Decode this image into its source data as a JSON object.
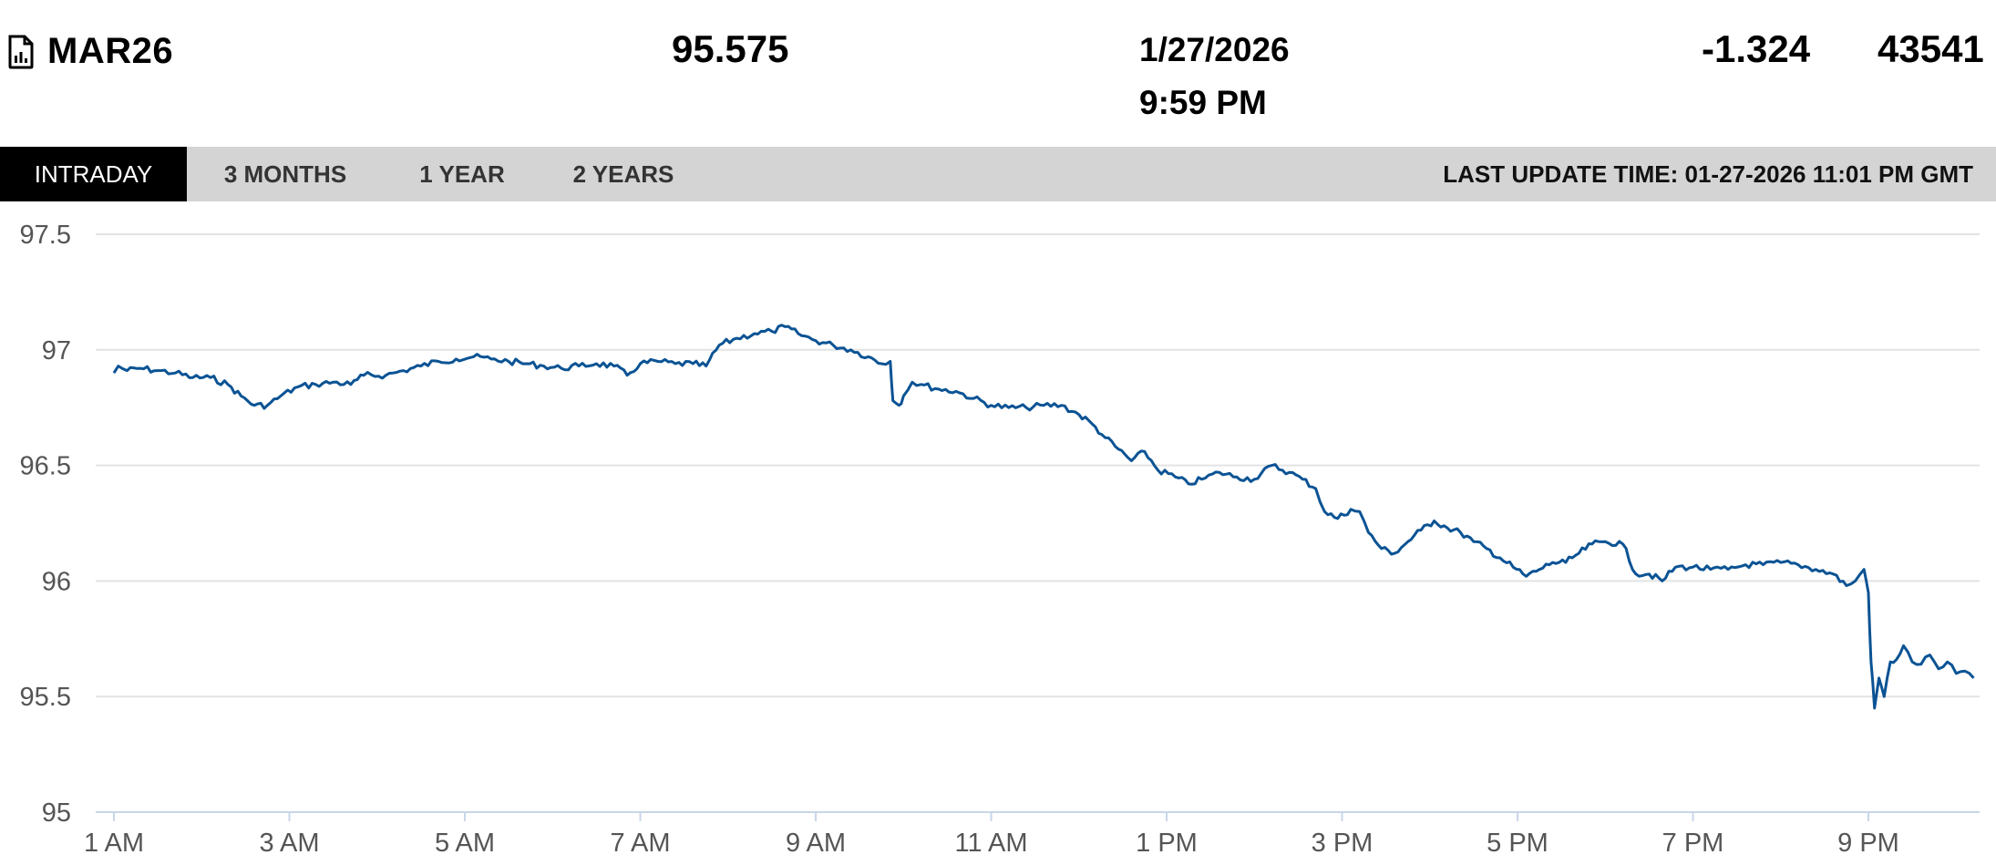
{
  "header": {
    "symbol": "MAR26",
    "price": "95.575",
    "date": "1/27/2026",
    "time": "9:59 PM",
    "change": "-1.324",
    "volume": "43541",
    "icon": "chart-file-icon"
  },
  "tabs": {
    "intraday": "INTRADAY",
    "three_months": "3 MONTHS",
    "one_year": "1 YEAR",
    "two_years": "2 YEARS",
    "active": "intraday"
  },
  "last_update": "LAST UPDATE TIME: 01-27-2026 11:01 PM GMT",
  "colors": {
    "line": "#0b5394",
    "grid": "#e3e3e3",
    "tabbar": "#d4d4d4",
    "active_tab": "#000000"
  },
  "chart_data": {
    "type": "line",
    "title": "",
    "xlabel": "",
    "ylabel": "",
    "ylim": [
      95,
      97.5
    ],
    "yticks": [
      "97.5",
      "97",
      "96.5",
      "96",
      "95.5",
      "95"
    ],
    "ytick_values": [
      97.5,
      97,
      96.5,
      96,
      95.5,
      95
    ],
    "xticks": [
      "1 AM",
      "3 AM",
      "5 AM",
      "7 AM",
      "9 AM",
      "11 AM",
      "1 PM",
      "3 PM",
      "5 PM",
      "7 PM",
      "9 PM"
    ],
    "xtick_hours": [
      1,
      3,
      5,
      7,
      9,
      11,
      13,
      15,
      17,
      19,
      21
    ],
    "xlim_hours": [
      1,
      22.2
    ],
    "grid": true,
    "series": [
      {
        "points": [
          [
            1.0,
            96.9
          ],
          [
            1.05,
            96.93
          ],
          [
            1.15,
            96.91
          ],
          [
            1.3,
            96.92
          ],
          [
            1.5,
            96.91
          ],
          [
            1.7,
            96.9
          ],
          [
            1.9,
            96.88
          ],
          [
            2.1,
            96.88
          ],
          [
            2.3,
            96.85
          ],
          [
            2.45,
            96.8
          ],
          [
            2.6,
            96.76
          ],
          [
            2.75,
            96.76
          ],
          [
            2.9,
            96.8
          ],
          [
            3.1,
            96.84
          ],
          [
            3.3,
            96.85
          ],
          [
            3.5,
            96.86
          ],
          [
            3.7,
            96.85
          ],
          [
            3.85,
            96.89
          ],
          [
            4.1,
            96.89
          ],
          [
            4.3,
            96.91
          ],
          [
            4.5,
            96.93
          ],
          [
            4.7,
            96.95
          ],
          [
            4.9,
            96.96
          ],
          [
            5.1,
            96.97
          ],
          [
            5.3,
            96.96
          ],
          [
            5.5,
            96.95
          ],
          [
            5.7,
            96.94
          ],
          [
            5.9,
            96.93
          ],
          [
            6.1,
            96.92
          ],
          [
            6.3,
            96.93
          ],
          [
            6.5,
            96.94
          ],
          [
            6.7,
            96.93
          ],
          [
            6.85,
            96.89
          ],
          [
            7.0,
            96.94
          ],
          [
            7.2,
            96.95
          ],
          [
            7.4,
            96.94
          ],
          [
            7.6,
            96.94
          ],
          [
            7.75,
            96.93
          ],
          [
            7.9,
            97.02
          ],
          [
            8.1,
            97.05
          ],
          [
            8.3,
            97.07
          ],
          [
            8.5,
            97.08
          ],
          [
            8.65,
            97.1
          ],
          [
            8.8,
            97.07
          ],
          [
            9.0,
            97.04
          ],
          [
            9.2,
            97.02
          ],
          [
            9.4,
            97.0
          ],
          [
            9.6,
            96.97
          ],
          [
            9.75,
            96.94
          ],
          [
            9.85,
            96.95
          ],
          [
            9.88,
            96.78
          ],
          [
            9.95,
            96.76
          ],
          [
            10.0,
            96.8
          ],
          [
            10.1,
            96.86
          ],
          [
            10.2,
            96.85
          ],
          [
            10.4,
            96.83
          ],
          [
            10.6,
            96.82
          ],
          [
            10.8,
            96.79
          ],
          [
            11.0,
            96.76
          ],
          [
            11.2,
            96.75
          ],
          [
            11.4,
            96.75
          ],
          [
            11.6,
            96.76
          ],
          [
            11.8,
            96.76
          ],
          [
            12.0,
            96.72
          ],
          [
            12.15,
            96.68
          ],
          [
            12.3,
            96.62
          ],
          [
            12.45,
            96.57
          ],
          [
            12.6,
            96.52
          ],
          [
            12.75,
            96.56
          ],
          [
            12.9,
            96.48
          ],
          [
            13.1,
            96.45
          ],
          [
            13.25,
            96.42
          ],
          [
            13.4,
            96.44
          ],
          [
            13.6,
            96.47
          ],
          [
            13.8,
            96.45
          ],
          [
            14.0,
            96.44
          ],
          [
            14.2,
            96.5
          ],
          [
            14.4,
            96.47
          ],
          [
            14.55,
            96.44
          ],
          [
            14.7,
            96.4
          ],
          [
            14.8,
            96.3
          ],
          [
            14.95,
            96.27
          ],
          [
            15.1,
            96.31
          ],
          [
            15.2,
            96.3
          ],
          [
            15.3,
            96.21
          ],
          [
            15.45,
            96.14
          ],
          [
            15.6,
            96.12
          ],
          [
            15.75,
            96.17
          ],
          [
            15.9,
            96.22
          ],
          [
            16.05,
            96.26
          ],
          [
            16.2,
            96.23
          ],
          [
            16.35,
            96.21
          ],
          [
            16.5,
            96.17
          ],
          [
            16.65,
            96.14
          ],
          [
            16.8,
            96.1
          ],
          [
            16.95,
            96.06
          ],
          [
            17.1,
            96.02
          ],
          [
            17.25,
            96.05
          ],
          [
            17.4,
            96.08
          ],
          [
            17.55,
            96.08
          ],
          [
            17.7,
            96.12
          ],
          [
            17.85,
            96.16
          ],
          [
            18.0,
            96.17
          ],
          [
            18.2,
            96.16
          ],
          [
            18.35,
            96.03
          ],
          [
            18.5,
            96.03
          ],
          [
            18.65,
            96.0
          ],
          [
            18.8,
            96.06
          ],
          [
            19.0,
            96.06
          ],
          [
            19.2,
            96.05
          ],
          [
            19.4,
            96.05
          ],
          [
            19.6,
            96.07
          ],
          [
            19.8,
            96.07
          ],
          [
            20.0,
            96.08
          ],
          [
            20.2,
            96.07
          ],
          [
            20.4,
            96.05
          ],
          [
            20.6,
            96.03
          ],
          [
            20.75,
            95.98
          ],
          [
            20.85,
            96.0
          ],
          [
            20.95,
            96.05
          ],
          [
            21.0,
            95.95
          ],
          [
            21.03,
            95.65
          ],
          [
            21.07,
            95.45
          ],
          [
            21.12,
            95.58
          ],
          [
            21.18,
            95.5
          ],
          [
            21.25,
            95.65
          ],
          [
            21.32,
            95.66
          ],
          [
            21.4,
            95.72
          ],
          [
            21.5,
            95.65
          ],
          [
            21.6,
            95.64
          ],
          [
            21.7,
            95.68
          ],
          [
            21.8,
            95.62
          ],
          [
            21.9,
            95.65
          ],
          [
            22.0,
            95.6
          ],
          [
            22.1,
            95.61
          ],
          [
            22.2,
            95.58
          ]
        ]
      }
    ]
  }
}
